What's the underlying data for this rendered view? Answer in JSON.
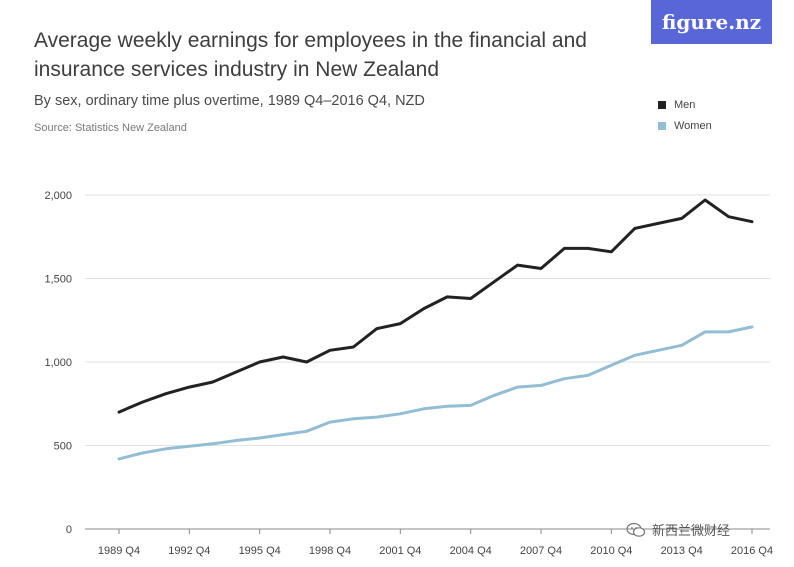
{
  "title": "Average weekly earnings for employees in the financial and insurance services industry in New Zealand",
  "subtitle": "By sex, ordinary time plus overtime, 1989 Q4–2016 Q4, NZD",
  "source": "Source: Statistics New Zealand",
  "brand": "figure.nz",
  "watermark": "新西兰微财经",
  "colors": {
    "men": "#222222",
    "women": "#92bdd5",
    "brand": "#5866d8"
  },
  "chart_data": {
    "type": "line",
    "title": "Average weekly earnings for employees in the financial and insurance services industry in New Zealand",
    "subtitle": "By sex, ordinary time plus overtime, 1989 Q4–2016 Q4, NZD",
    "xlabel": "",
    "ylabel": "",
    "x_range": [
      "1989 Q4",
      "2016 Q4"
    ],
    "ylim": [
      0,
      2000
    ],
    "y_ticks": [
      {
        "value": 0,
        "label": "0"
      },
      {
        "value": 500,
        "label": "500"
      },
      {
        "value": 1000,
        "label": "1,000"
      },
      {
        "value": 1500,
        "label": "1,500"
      },
      {
        "value": 2000,
        "label": "2,000"
      }
    ],
    "x_ticks": [
      "1989 Q4",
      "1992 Q4",
      "1995 Q4",
      "1998 Q4",
      "2001 Q4",
      "2004 Q4",
      "2007 Q4",
      "2010 Q4",
      "2013 Q4",
      "2016 Q4"
    ],
    "grid": "horizontal",
    "legend_position": "top-right",
    "series": [
      {
        "name": "Men",
        "color": "#222222",
        "points": [
          [
            "1989 Q4",
            700
          ],
          [
            "1990 Q4",
            760
          ],
          [
            "1991 Q4",
            810
          ],
          [
            "1992 Q4",
            850
          ],
          [
            "1993 Q4",
            880
          ],
          [
            "1994 Q4",
            940
          ],
          [
            "1995 Q4",
            1000
          ],
          [
            "1996 Q4",
            1030
          ],
          [
            "1997 Q4",
            1000
          ],
          [
            "1998 Q4",
            1070
          ],
          [
            "1999 Q4",
            1090
          ],
          [
            "2000 Q4",
            1200
          ],
          [
            "2001 Q4",
            1230
          ],
          [
            "2002 Q4",
            1320
          ],
          [
            "2003 Q4",
            1390
          ],
          [
            "2004 Q4",
            1380
          ],
          [
            "2005 Q4",
            1480
          ],
          [
            "2006 Q4",
            1580
          ],
          [
            "2007 Q4",
            1560
          ],
          [
            "2008 Q4",
            1680
          ],
          [
            "2009 Q4",
            1680
          ],
          [
            "2010 Q4",
            1660
          ],
          [
            "2011 Q4",
            1800
          ],
          [
            "2012 Q4",
            1830
          ],
          [
            "2013 Q4",
            1860
          ],
          [
            "2014 Q4",
            1970
          ],
          [
            "2015 Q4",
            1870
          ],
          [
            "2016 Q4",
            1840
          ]
        ]
      },
      {
        "name": "Women",
        "color": "#92bdd5",
        "points": [
          [
            "1989 Q4",
            420
          ],
          [
            "1990 Q4",
            455
          ],
          [
            "1991 Q4",
            480
          ],
          [
            "1992 Q4",
            495
          ],
          [
            "1993 Q4",
            510
          ],
          [
            "1994 Q4",
            530
          ],
          [
            "1995 Q4",
            545
          ],
          [
            "1996 Q4",
            565
          ],
          [
            "1997 Q4",
            585
          ],
          [
            "1998 Q4",
            640
          ],
          [
            "1999 Q4",
            660
          ],
          [
            "2000 Q4",
            670
          ],
          [
            "2001 Q4",
            690
          ],
          [
            "2002 Q4",
            720
          ],
          [
            "2003 Q4",
            735
          ],
          [
            "2004 Q4",
            740
          ],
          [
            "2005 Q4",
            800
          ],
          [
            "2006 Q4",
            850
          ],
          [
            "2007 Q4",
            860
          ],
          [
            "2008 Q4",
            900
          ],
          [
            "2009 Q4",
            920
          ],
          [
            "2010 Q4",
            980
          ],
          [
            "2011 Q4",
            1040
          ],
          [
            "2012 Q4",
            1070
          ],
          [
            "2013 Q4",
            1100
          ],
          [
            "2014 Q4",
            1180
          ],
          [
            "2015 Q4",
            1180
          ],
          [
            "2016 Q4",
            1210
          ]
        ]
      }
    ]
  }
}
